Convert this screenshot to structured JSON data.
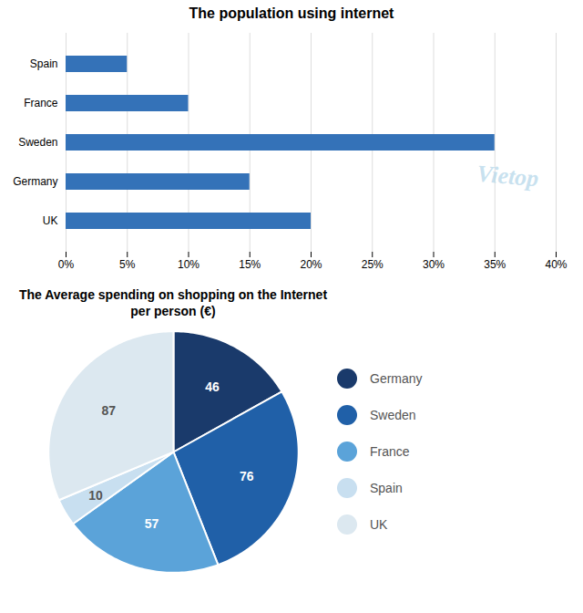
{
  "chart_data": [
    {
      "type": "bar",
      "title": "The population using internet",
      "orientation": "horizontal",
      "categories": [
        "Spain",
        "France",
        "Sweden",
        "Germany",
        "UK"
      ],
      "values": [
        5,
        10,
        35,
        15,
        20
      ],
      "color": "#3472b8",
      "xlim": [
        0,
        40
      ],
      "xticks": [
        {
          "value": 0,
          "label": "0%"
        },
        {
          "value": 5,
          "label": "5%"
        },
        {
          "value": 10,
          "label": "10%"
        },
        {
          "value": 15,
          "label": "15%"
        },
        {
          "value": 20,
          "label": "20%"
        },
        {
          "value": 25,
          "label": "25%"
        },
        {
          "value": 30,
          "label": "30%"
        },
        {
          "value": 35,
          "label": "35%"
        },
        {
          "value": 40,
          "label": "40%"
        }
      ],
      "grid": true,
      "annotations": [
        {
          "text": "Vietop",
          "color": "#b0d4e8"
        }
      ]
    },
    {
      "type": "pie",
      "title": "The Average spending on shopping on the Internet\nper person (€)",
      "categories": [
        "Germany",
        "Sweden",
        "France",
        "Spain",
        "UK"
      ],
      "values": [
        46,
        76,
        57,
        10,
        87
      ],
      "colors": [
        "#1a3a6b",
        "#2060a8",
        "#5ba3d9",
        "#c8dff0",
        "#dce8f0"
      ],
      "data_labels": true,
      "legend": "right"
    }
  ]
}
